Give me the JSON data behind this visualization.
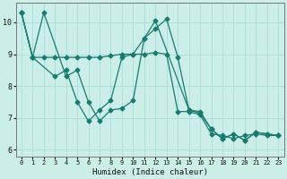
{
  "xlabel": "Humidex (Indice chaleur)",
  "xlim": [
    -0.5,
    23.5
  ],
  "ylim": [
    5.8,
    10.6
  ],
  "yticks": [
    6,
    7,
    8,
    9,
    10
  ],
  "xticks": [
    0,
    1,
    2,
    3,
    4,
    5,
    6,
    7,
    8,
    9,
    10,
    11,
    12,
    13,
    14,
    15,
    16,
    17,
    18,
    19,
    20,
    21,
    22,
    23
  ],
  "bg_color": "#cceee8",
  "grid_color": "#aaddda",
  "line_color": "#1a7a70",
  "s1_x": [
    0,
    1,
    2,
    4,
    5,
    6,
    7,
    8,
    9,
    10,
    11,
    12,
    13,
    14,
    15,
    16,
    17,
    18,
    19,
    20,
    21,
    22,
    23
  ],
  "s1_y": [
    10.3,
    8.9,
    10.3,
    8.3,
    8.5,
    7.5,
    6.9,
    7.25,
    7.3,
    7.55,
    9.5,
    9.8,
    10.1,
    8.9,
    7.25,
    7.15,
    6.65,
    6.35,
    6.5,
    6.3,
    6.55,
    6.5,
    6.45
  ],
  "s2_x": [
    0,
    1,
    2,
    3,
    4,
    5,
    6,
    7,
    8,
    9,
    10,
    11,
    12,
    13,
    14,
    15,
    16,
    17,
    18,
    19,
    20,
    21,
    22,
    23
  ],
  "s2_y": [
    10.3,
    8.9,
    8.9,
    8.9,
    8.9,
    8.9,
    8.9,
    8.9,
    8.95,
    9.0,
    9.0,
    9.0,
    9.05,
    9.0,
    7.2,
    7.2,
    7.1,
    6.5,
    6.45,
    6.35,
    6.45,
    6.5,
    6.45,
    6.45
  ],
  "s3_x": [
    0,
    1,
    3,
    4,
    5,
    6,
    7,
    8,
    9,
    10,
    11,
    12,
    15,
    16,
    17,
    18,
    19,
    20,
    21,
    22,
    23
  ],
  "s3_y": [
    10.3,
    8.9,
    8.3,
    8.5,
    7.5,
    6.9,
    7.25,
    7.55,
    8.9,
    9.0,
    9.5,
    10.05,
    7.25,
    7.2,
    6.65,
    6.35,
    6.5,
    6.3,
    6.55,
    6.5,
    6.45
  ]
}
